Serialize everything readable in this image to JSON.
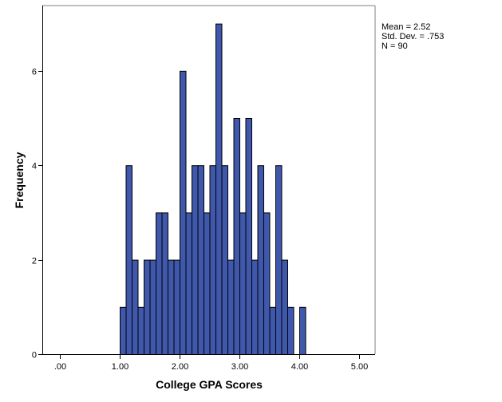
{
  "stats": {
    "mean_label": "Mean = 2.52",
    "sd_label": "Std. Dev. = .753",
    "n_label": "N = 90"
  },
  "colors": {
    "bar_fill": "#3F58AC",
    "bar_stroke": "#000000",
    "axis": "#000000",
    "frame": "#808080"
  },
  "chart_data": {
    "type": "bar",
    "subtype": "histogram",
    "title": "",
    "xlabel": "College GPA Scores",
    "ylabel": "Frequency",
    "xlim": [
      -0.05,
      5.3
    ],
    "ylim": [
      0,
      7.25
    ],
    "x_ticks": [
      0,
      1,
      2,
      3,
      4,
      5
    ],
    "x_tick_labels": [
      ".00",
      "1.00",
      "2.00",
      "3.00",
      "4.00",
      "5.00"
    ],
    "y_ticks": [
      0,
      2,
      4,
      6
    ],
    "y_tick_labels": [
      "0",
      "2",
      "4",
      "6"
    ],
    "bin_width": 0.1,
    "bin_starts": [
      1.0,
      1.1,
      1.2,
      1.3,
      1.4,
      1.5,
      1.6,
      1.7,
      1.8,
      1.9,
      2.0,
      2.1,
      2.2,
      2.3,
      2.4,
      2.5,
      2.6,
      2.7,
      2.8,
      2.9,
      3.0,
      3.1,
      3.2,
      3.3,
      3.4,
      3.5,
      3.6,
      3.7,
      3.8,
      3.9,
      4.0
    ],
    "values": [
      1,
      4,
      2,
      1,
      2,
      2,
      3,
      3,
      2,
      2,
      6,
      3,
      4,
      4,
      3,
      4,
      7,
      4,
      2,
      5,
      3,
      5,
      2,
      4,
      3,
      1,
      4,
      2,
      1,
      0,
      1
    ],
    "grid": false,
    "legend": null,
    "annotations": [
      "Mean = 2.52",
      "Std. Dev. = .753",
      "N = 90"
    ]
  }
}
